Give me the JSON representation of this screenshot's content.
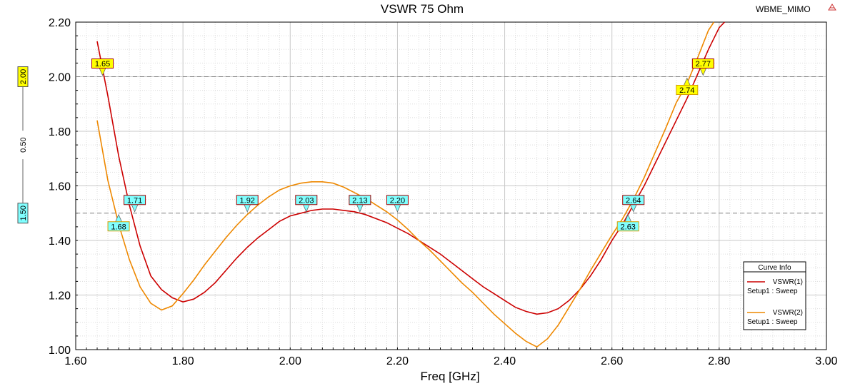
{
  "chart_data": {
    "type": "line",
    "title": "VSWR 75 Ohm",
    "project_label": "WBME_MIMO",
    "xlabel": "Freq [GHz]",
    "ylabel": "",
    "xlim": [
      1.6,
      3.0
    ],
    "ylim": [
      1.0,
      2.2
    ],
    "x_ticks": [
      "1.60",
      "1.80",
      "2.00",
      "2.20",
      "2.40",
      "2.60",
      "2.80",
      "3.00"
    ],
    "y_ticks": [
      "1.00",
      "1.20",
      "1.40",
      "1.60",
      "1.80",
      "2.00",
      "2.20"
    ],
    "grid": true,
    "reference_lines": [
      {
        "value": 2.0,
        "label": "2.00",
        "color": "#ffff00"
      },
      {
        "value": 1.5,
        "label": "1.50",
        "color": "#80ffff"
      }
    ],
    "delta_label": "0.50",
    "legend": {
      "title": "Curve Info",
      "position": "bottom-right",
      "entries": [
        {
          "name": "VSWR(1)",
          "sub": "Setup1 : Sweep",
          "color": "#cc0000"
        },
        {
          "name": "VSWR(2)",
          "sub": "Setup1 : Sweep",
          "color": "#ee8800"
        }
      ]
    },
    "series": [
      {
        "name": "VSWR(1)",
        "color": "#cc0000",
        "points": [
          [
            1.64,
            2.13
          ],
          [
            1.66,
            1.93
          ],
          [
            1.68,
            1.71
          ],
          [
            1.7,
            1.53
          ],
          [
            1.72,
            1.38
          ],
          [
            1.74,
            1.27
          ],
          [
            1.76,
            1.22
          ],
          [
            1.78,
            1.19
          ],
          [
            1.8,
            1.175
          ],
          [
            1.82,
            1.185
          ],
          [
            1.84,
            1.21
          ],
          [
            1.86,
            1.245
          ],
          [
            1.88,
            1.29
          ],
          [
            1.9,
            1.335
          ],
          [
            1.92,
            1.375
          ],
          [
            1.94,
            1.41
          ],
          [
            1.96,
            1.44
          ],
          [
            1.98,
            1.47
          ],
          [
            2.0,
            1.49
          ],
          [
            2.02,
            1.5
          ],
          [
            2.04,
            1.51
          ],
          [
            2.06,
            1.515
          ],
          [
            2.08,
            1.515
          ],
          [
            2.1,
            1.51
          ],
          [
            2.12,
            1.505
          ],
          [
            2.14,
            1.495
          ],
          [
            2.16,
            1.48
          ],
          [
            2.18,
            1.465
          ],
          [
            2.2,
            1.445
          ],
          [
            2.22,
            1.425
          ],
          [
            2.24,
            1.4
          ],
          [
            2.26,
            1.375
          ],
          [
            2.28,
            1.35
          ],
          [
            2.3,
            1.32
          ],
          [
            2.32,
            1.29
          ],
          [
            2.34,
            1.26
          ],
          [
            2.36,
            1.23
          ],
          [
            2.38,
            1.205
          ],
          [
            2.4,
            1.18
          ],
          [
            2.42,
            1.155
          ],
          [
            2.44,
            1.14
          ],
          [
            2.46,
            1.13
          ],
          [
            2.48,
            1.135
          ],
          [
            2.5,
            1.15
          ],
          [
            2.52,
            1.18
          ],
          [
            2.54,
            1.22
          ],
          [
            2.56,
            1.27
          ],
          [
            2.58,
            1.33
          ],
          [
            2.6,
            1.4
          ],
          [
            2.62,
            1.46
          ],
          [
            2.64,
            1.53
          ],
          [
            2.66,
            1.6
          ],
          [
            2.68,
            1.68
          ],
          [
            2.7,
            1.76
          ],
          [
            2.72,
            1.84
          ],
          [
            2.74,
            1.92
          ],
          [
            2.76,
            2.01
          ],
          [
            2.78,
            2.1
          ],
          [
            2.8,
            2.18
          ],
          [
            2.81,
            2.22
          ]
        ]
      },
      {
        "name": "VSWR(2)",
        "color": "#ee8800",
        "points": [
          [
            1.64,
            1.84
          ],
          [
            1.66,
            1.62
          ],
          [
            1.68,
            1.46
          ],
          [
            1.7,
            1.33
          ],
          [
            1.72,
            1.23
          ],
          [
            1.74,
            1.17
          ],
          [
            1.76,
            1.145
          ],
          [
            1.78,
            1.16
          ],
          [
            1.8,
            1.205
          ],
          [
            1.82,
            1.255
          ],
          [
            1.84,
            1.31
          ],
          [
            1.86,
            1.36
          ],
          [
            1.88,
            1.41
          ],
          [
            1.9,
            1.455
          ],
          [
            1.92,
            1.495
          ],
          [
            1.94,
            1.53
          ],
          [
            1.96,
            1.56
          ],
          [
            1.98,
            1.585
          ],
          [
            2.0,
            1.6
          ],
          [
            2.02,
            1.61
          ],
          [
            2.04,
            1.615
          ],
          [
            2.06,
            1.615
          ],
          [
            2.08,
            1.61
          ],
          [
            2.1,
            1.595
          ],
          [
            2.12,
            1.575
          ],
          [
            2.14,
            1.555
          ],
          [
            2.16,
            1.53
          ],
          [
            2.18,
            1.505
          ],
          [
            2.2,
            1.475
          ],
          [
            2.22,
            1.44
          ],
          [
            2.24,
            1.4
          ],
          [
            2.26,
            1.365
          ],
          [
            2.28,
            1.325
          ],
          [
            2.3,
            1.285
          ],
          [
            2.32,
            1.245
          ],
          [
            2.34,
            1.21
          ],
          [
            2.36,
            1.17
          ],
          [
            2.38,
            1.13
          ],
          [
            2.4,
            1.095
          ],
          [
            2.42,
            1.06
          ],
          [
            2.44,
            1.03
          ],
          [
            2.46,
            1.01
          ],
          [
            2.48,
            1.04
          ],
          [
            2.5,
            1.09
          ],
          [
            2.52,
            1.155
          ],
          [
            2.54,
            1.22
          ],
          [
            2.56,
            1.29
          ],
          [
            2.58,
            1.355
          ],
          [
            2.6,
            1.42
          ],
          [
            2.62,
            1.48
          ],
          [
            2.64,
            1.55
          ],
          [
            2.66,
            1.63
          ],
          [
            2.68,
            1.72
          ],
          [
            2.7,
            1.81
          ],
          [
            2.72,
            1.905
          ],
          [
            2.74,
            1.975
          ],
          [
            2.76,
            2.07
          ],
          [
            2.78,
            2.17
          ],
          [
            2.79,
            2.22
          ]
        ]
      }
    ],
    "markers": [
      {
        "label": "1.65",
        "x": 1.65,
        "y": 2.0,
        "color": "#ffff00",
        "side": "above"
      },
      {
        "label": "2.77",
        "x": 2.77,
        "y": 2.0,
        "color": "#ffff00",
        "side": "above"
      },
      {
        "label": "2.74",
        "x": 2.74,
        "y": 2.0,
        "color": "#ffff00",
        "side": "below"
      },
      {
        "label": "1.71",
        "x": 1.71,
        "y": 1.5,
        "color": "#80ffff",
        "side": "above"
      },
      {
        "label": "1.68",
        "x": 1.68,
        "y": 1.5,
        "color": "#80ffff",
        "side": "below"
      },
      {
        "label": "1.92",
        "x": 1.92,
        "y": 1.5,
        "color": "#80ffff",
        "side": "above"
      },
      {
        "label": "2.03",
        "x": 2.03,
        "y": 1.5,
        "color": "#80ffff",
        "side": "above"
      },
      {
        "label": "2.13",
        "x": 2.13,
        "y": 1.5,
        "color": "#80ffff",
        "side": "above"
      },
      {
        "label": "2.20",
        "x": 2.2,
        "y": 1.5,
        "color": "#80ffff",
        "side": "above"
      },
      {
        "label": "2.64",
        "x": 2.64,
        "y": 1.5,
        "color": "#80ffff",
        "side": "above"
      },
      {
        "label": "2.63",
        "x": 2.63,
        "y": 1.5,
        "color": "#80ffff",
        "side": "below"
      }
    ]
  }
}
